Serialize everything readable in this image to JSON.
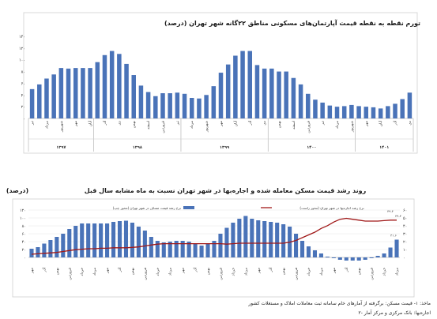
{
  "chart_data": [
    {
      "type": "bar",
      "title": "تورم نقطه به نقطه قیمت آپارتمان‌های مسکونی مناطق ۲۲گانه شهر تهران (درصد)",
      "yticks": [
        "۰",
        "۲۰",
        "۴۰",
        "۶۰",
        "۸۰",
        "۱۰۰",
        "۱۲۰",
        "۱۴۰"
      ],
      "ylim": [
        0,
        140
      ],
      "values": [
        50,
        58,
        68,
        75,
        86,
        85,
        86,
        86,
        86,
        96,
        108,
        115,
        110,
        93,
        74,
        56,
        45,
        38,
        43,
        43,
        44,
        42,
        35,
        34,
        40,
        55,
        78,
        92,
        107,
        115,
        115,
        91,
        85,
        85,
        80,
        80,
        69,
        58,
        42,
        32,
        27,
        22,
        20,
        21,
        23,
        21,
        20,
        19,
        17,
        21,
        25,
        33,
        44
      ],
      "xlabels": [
        "تیر",
        "مرداد",
        "شهریور",
        "مهر",
        "آبان",
        "آذر",
        "دی",
        "بهمن",
        "اسفند",
        "فروردین"
      ],
      "group_labels": [
        "۱۳۹۷",
        "۱۳۹۸",
        "۱۳۹۹",
        "۱۴۰۰",
        "۱۴۰۱"
      ],
      "group_bounds": [
        0,
        9,
        21,
        33,
        45,
        53
      ]
    },
    {
      "type": "bar+line",
      "title": "روند رشد قیمت مسکن معامله شده و اجاره‌بها در شهر تهران نسبت به ماه مشابه سال قبل",
      "unit_label": "(درصد)",
      "series": [
        {
          "name": "نرخ رشد قیمت مسکن در شهر تهران (محور چپ)",
          "type": "bar",
          "color": "#4a73b8",
          "values": [
            22,
            26,
            35,
            44,
            52,
            60,
            72,
            80,
            86,
            86,
            86,
            86,
            86,
            90,
            92,
            93,
            88,
            78,
            68,
            52,
            42,
            38,
            40,
            42,
            42,
            40,
            36,
            30,
            34,
            42,
            60,
            75,
            88,
            98,
            105,
            98,
            94,
            92,
            90,
            88,
            84,
            78,
            60,
            42,
            28,
            18,
            10,
            2,
            -2,
            -6,
            -8,
            -8,
            -8,
            -6,
            -2,
            4,
            10,
            25,
            45
          ]
        },
        {
          "name": "نرخ رشد اجاره‌بها در شهر تهران (محور راست)",
          "type": "line",
          "color": "#a01818",
          "values": [
            12,
            12.5,
            13,
            13.5,
            14,
            15,
            16,
            17,
            17.5,
            18,
            18,
            18.5,
            18.5,
            19,
            19,
            19,
            19.5,
            20,
            21,
            22,
            23,
            23.5,
            23.5,
            23.5,
            23.5,
            23.5,
            23.5,
            23.5,
            23.5,
            23.5,
            23.5,
            23,
            23.5,
            24,
            24,
            24,
            24,
            24,
            24,
            24,
            24,
            25,
            27,
            30,
            33,
            36,
            40,
            43,
            47,
            50,
            51,
            50,
            49,
            48,
            48,
            48,
            48.5,
            49,
            49
          ]
        }
      ],
      "ylim_left": [
        -20,
        120
      ],
      "ylim_right": [
        0,
        60
      ],
      "yticks_left": [
        "۱۲۰",
        "۱۰۰",
        "۸۰",
        "۶۰",
        "۴۰",
        "۲۰",
        "۰"
      ],
      "yticks_right": [
        "۶۰",
        "۵۰",
        "۴۰",
        "۳۰",
        "۲۰",
        "۱۰",
        "۰"
      ],
      "xlabels": [
        "مهر",
        "آذر",
        "بهمن",
        "فروردین",
        "خرداد",
        "مرداد",
        "مهر",
        "آذر",
        "بهمن",
        "فروردین",
        "خرداد",
        "مرداد",
        "مهر",
        "آذر",
        "بهمن",
        "فروردین",
        "خرداد",
        "مرداد",
        "مهر",
        "آذر",
        "بهمن",
        "فروردین",
        "خرداد",
        "مرداد",
        "مهر",
        "آذر",
        "بهمن",
        "فروردین",
        "خرداد",
        "مرداد"
      ],
      "data_labels": [
        "۴۹.۴",
        "۴۹.۴",
        "۴۱.۶"
      ]
    }
  ],
  "footnotes": [
    "ماخذ: ۱- قیمت مسکن: برگرفته از آمارهای خام سامانه ثبت معاملات املاک و مستغلات کشور",
    "۲- اجاره‌بها: بانک مرکزی و مرکز آمار"
  ],
  "colors": {
    "bar": "#4a73b8",
    "line": "#a01818",
    "axis": "#888888",
    "grid": "#e6e6e6"
  }
}
